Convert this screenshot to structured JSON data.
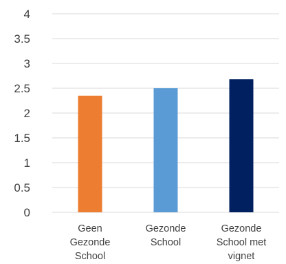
{
  "chart_data": {
    "type": "bar",
    "categories": [
      [
        "Geen",
        "Gezonde",
        "School"
      ],
      [
        "Gezonde",
        "School"
      ],
      [
        "Gezonde",
        "School met",
        "vignet"
      ]
    ],
    "category_labels": [
      "Geen Gezonde School",
      "Gezonde School",
      "Gezonde School met vignet"
    ],
    "values": [
      2.35,
      2.5,
      2.68
    ],
    "colors": [
      "#ED7D31",
      "#5B9BD5",
      "#002060"
    ],
    "ylim": [
      0,
      4
    ],
    "yticks": [
      "0",
      "0.5",
      "1",
      "1.5",
      "2",
      "2.5",
      "3",
      "3.5",
      "4"
    ],
    "title": "",
    "xlabel": "",
    "ylabel": "",
    "grid": true,
    "legend": "none"
  }
}
